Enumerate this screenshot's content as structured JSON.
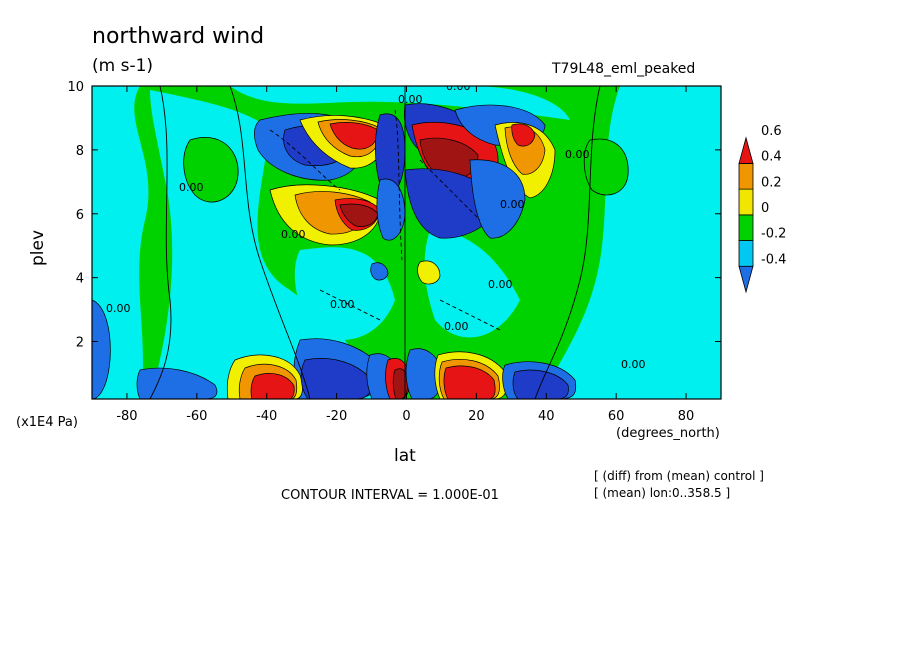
{
  "header": {
    "title": "northward wind",
    "units": "(m s-1)",
    "run_label": "T79L48_eml_peaked"
  },
  "footer": {
    "contour_interval": "CONTOUR INTERVAL = 1.000E-01",
    "diff_note": "[ (diff) from (mean) control ]",
    "mean_note": "[ (mean) lon:0..358.5 ]"
  },
  "chart_data": {
    "type": "heatmap",
    "xlabel": "lat",
    "x_units": "(degrees_north)",
    "ylabel": "plev",
    "y_units": "(x1E4 Pa)",
    "xlim": [
      -90,
      90
    ],
    "ylim": [
      10,
      0.2
    ],
    "x_ticks": [
      -80,
      -60,
      -40,
      -20,
      0,
      20,
      40,
      60,
      80
    ],
    "y_ticks": [
      2,
      4,
      6,
      8,
      10
    ],
    "legend": {
      "placement": "right",
      "levels": [
        "-0.4",
        "-0.2",
        "0",
        "0.2",
        "0.4",
        "0.6"
      ],
      "colors": [
        "#1e6ee6",
        "#00c8f0",
        "#00d200",
        "#f0e600",
        "#f09600",
        "#e61414"
      ]
    },
    "contour_label": "0.00",
    "colors": {
      "dark_blue": "#1e3cc8",
      "blue": "#1e6ee6",
      "cyan": "#00f0f0",
      "green": "#00d200",
      "yellow": "#f0f000",
      "orange": "#f09600",
      "red": "#e61414",
      "dark_red": "#a01414"
    }
  }
}
